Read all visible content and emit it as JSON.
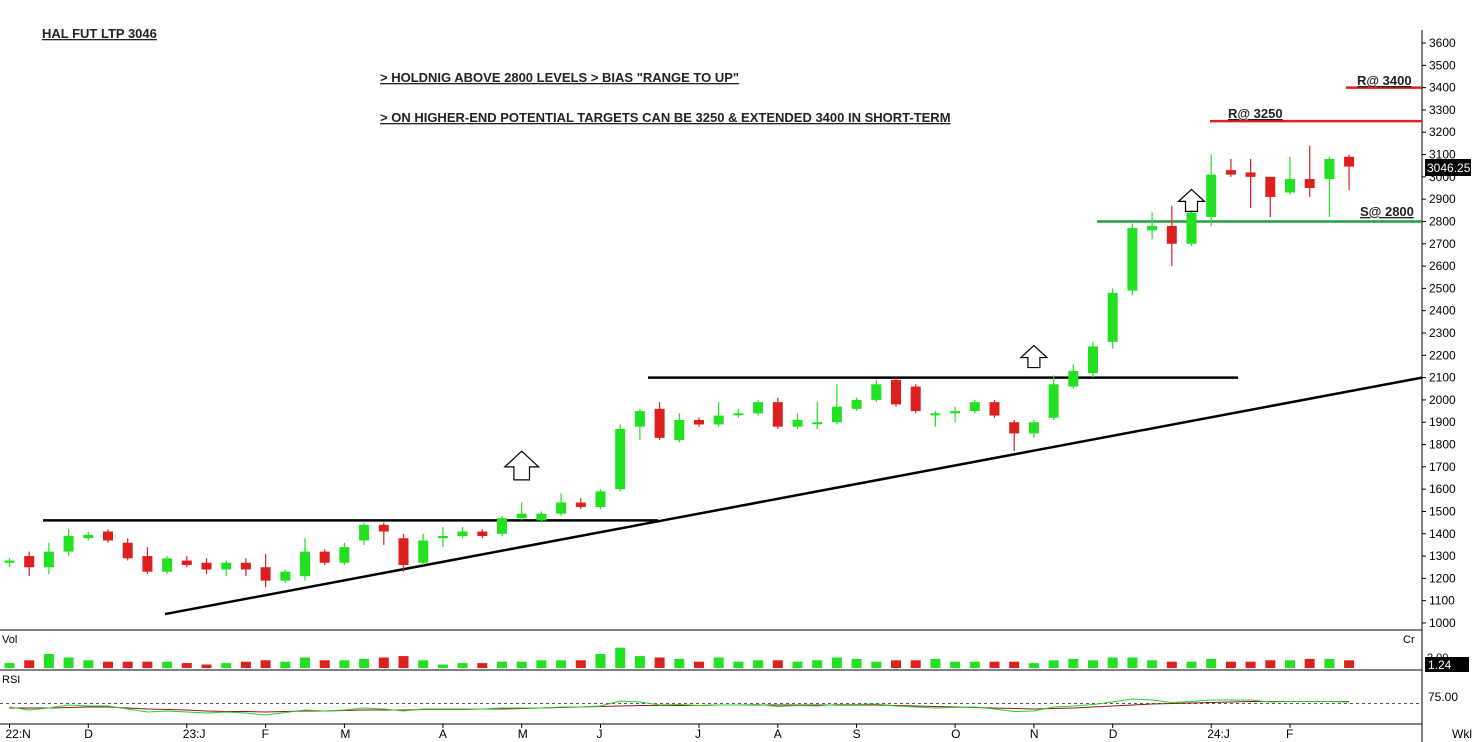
{
  "header": {
    "title": "HAL FUT LTP 3046",
    "note1": "> HOLDNIG ABOVE 2800 LEVELS > BIAS \"RANGE TO UP\"",
    "note2": "> ON HIGHER-END POTENTIAL TARGETS CAN BE 3250 & EXTENDED 3400 IN SHORT-TERM"
  },
  "labels": {
    "r3400": "R@ 3400",
    "r3250": "R@ 3250",
    "s2800": "S@ 2800",
    "last_price": "3046.25",
    "vol_panel": "Vol",
    "vol_unit": "Cr",
    "vol_tick": "2.00",
    "vol_last": "1.24",
    "rsi_panel": "RSI",
    "rsi_tick": "75.00",
    "timeframe": "Wkl"
  },
  "colors": {
    "up": "#22e022",
    "down": "#dd1f1f",
    "resistance": "#e02020",
    "support": "#20a040",
    "trendline": "#000000",
    "rsi_line": "#2ecc2e",
    "rsi_avg": "#8b1a1a"
  },
  "chart_data": {
    "type": "candlestick",
    "timeframe": "weekly",
    "ylim": [
      950,
      3650
    ],
    "y_ticks": [
      1000,
      1100,
      1200,
      1300,
      1400,
      1500,
      1600,
      1700,
      1800,
      1900,
      2000,
      2100,
      2200,
      2300,
      2400,
      2500,
      2600,
      2700,
      2800,
      2900,
      3000,
      3100,
      3200,
      3300,
      3400,
      3500,
      3600
    ],
    "x_ticks": [
      {
        "label": "22:N",
        "bar": 0
      },
      {
        "label": "D",
        "bar": 4
      },
      {
        "label": "23:J",
        "bar": 9
      },
      {
        "label": "F",
        "bar": 13
      },
      {
        "label": "M",
        "bar": 17
      },
      {
        "label": "A",
        "bar": 22
      },
      {
        "label": "M",
        "bar": 26
      },
      {
        "label": "J",
        "bar": 30
      },
      {
        "label": "J",
        "bar": 35
      },
      {
        "label": "A",
        "bar": 39
      },
      {
        "label": "S",
        "bar": 43
      },
      {
        "label": "O",
        "bar": 48
      },
      {
        "label": "N",
        "bar": 52
      },
      {
        "label": "D",
        "bar": 56
      },
      {
        "label": "24:J",
        "bar": 61
      },
      {
        "label": "F",
        "bar": 65
      }
    ],
    "candles": [
      {
        "o": 1270,
        "h": 1290,
        "l": 1250,
        "c": 1280
      },
      {
        "o": 1300,
        "h": 1320,
        "l": 1210,
        "c": 1250
      },
      {
        "o": 1250,
        "h": 1360,
        "l": 1220,
        "c": 1320
      },
      {
        "o": 1320,
        "h": 1420,
        "l": 1300,
        "c": 1390
      },
      {
        "o": 1380,
        "h": 1410,
        "l": 1370,
        "c": 1395
      },
      {
        "o": 1410,
        "h": 1420,
        "l": 1360,
        "c": 1370
      },
      {
        "o": 1360,
        "h": 1380,
        "l": 1280,
        "c": 1290
      },
      {
        "o": 1300,
        "h": 1340,
        "l": 1220,
        "c": 1230
      },
      {
        "o": 1230,
        "h": 1300,
        "l": 1220,
        "c": 1290
      },
      {
        "o": 1280,
        "h": 1300,
        "l": 1250,
        "c": 1260
      },
      {
        "o": 1270,
        "h": 1290,
        "l": 1220,
        "c": 1240
      },
      {
        "o": 1240,
        "h": 1280,
        "l": 1210,
        "c": 1270
      },
      {
        "o": 1270,
        "h": 1290,
        "l": 1210,
        "c": 1240
      },
      {
        "o": 1250,
        "h": 1310,
        "l": 1160,
        "c": 1190
      },
      {
        "o": 1190,
        "h": 1240,
        "l": 1180,
        "c": 1230
      },
      {
        "o": 1210,
        "h": 1380,
        "l": 1190,
        "c": 1320
      },
      {
        "o": 1320,
        "h": 1330,
        "l": 1260,
        "c": 1270
      },
      {
        "o": 1270,
        "h": 1360,
        "l": 1260,
        "c": 1340
      },
      {
        "o": 1370,
        "h": 1450,
        "l": 1350,
        "c": 1440
      },
      {
        "o": 1440,
        "h": 1450,
        "l": 1350,
        "c": 1410
      },
      {
        "o": 1380,
        "h": 1400,
        "l": 1230,
        "c": 1260
      },
      {
        "o": 1270,
        "h": 1400,
        "l": 1260,
        "c": 1370
      },
      {
        "o": 1380,
        "h": 1430,
        "l": 1340,
        "c": 1390
      },
      {
        "o": 1390,
        "h": 1430,
        "l": 1380,
        "c": 1410
      },
      {
        "o": 1410,
        "h": 1420,
        "l": 1380,
        "c": 1390
      },
      {
        "o": 1400,
        "h": 1480,
        "l": 1390,
        "c": 1470
      },
      {
        "o": 1470,
        "h": 1540,
        "l": 1460,
        "c": 1490
      },
      {
        "o": 1460,
        "h": 1500,
        "l": 1450,
        "c": 1490
      },
      {
        "o": 1490,
        "h": 1580,
        "l": 1480,
        "c": 1540
      },
      {
        "o": 1540,
        "h": 1560,
        "l": 1510,
        "c": 1520
      },
      {
        "o": 1520,
        "h": 1600,
        "l": 1510,
        "c": 1590
      },
      {
        "o": 1600,
        "h": 1890,
        "l": 1590,
        "c": 1870
      },
      {
        "o": 1880,
        "h": 1960,
        "l": 1820,
        "c": 1950
      },
      {
        "o": 1960,
        "h": 1990,
        "l": 1820,
        "c": 1830
      },
      {
        "o": 1820,
        "h": 1940,
        "l": 1810,
        "c": 1910
      },
      {
        "o": 1910,
        "h": 1920,
        "l": 1880,
        "c": 1890
      },
      {
        "o": 1890,
        "h": 1990,
        "l": 1880,
        "c": 1930
      },
      {
        "o": 1940,
        "h": 1960,
        "l": 1920,
        "c": 1940
      },
      {
        "o": 1940,
        "h": 2000,
        "l": 1930,
        "c": 1990
      },
      {
        "o": 1990,
        "h": 2010,
        "l": 1870,
        "c": 1880
      },
      {
        "o": 1880,
        "h": 1940,
        "l": 1870,
        "c": 1910
      },
      {
        "o": 1900,
        "h": 1990,
        "l": 1870,
        "c": 1900
      },
      {
        "o": 1900,
        "h": 2070,
        "l": 1890,
        "c": 1970
      },
      {
        "o": 1960,
        "h": 2010,
        "l": 1950,
        "c": 2000
      },
      {
        "o": 2000,
        "h": 2090,
        "l": 1990,
        "c": 2070
      },
      {
        "o": 2090,
        "h": 2100,
        "l": 1970,
        "c": 1980
      },
      {
        "o": 2060,
        "h": 2070,
        "l": 1940,
        "c": 1950
      },
      {
        "o": 1940,
        "h": 1950,
        "l": 1880,
        "c": 1940
      },
      {
        "o": 1940,
        "h": 1970,
        "l": 1900,
        "c": 1950
      },
      {
        "o": 1950,
        "h": 2000,
        "l": 1940,
        "c": 1990
      },
      {
        "o": 1990,
        "h": 2000,
        "l": 1920,
        "c": 1930
      },
      {
        "o": 1900,
        "h": 1910,
        "l": 1770,
        "c": 1850
      },
      {
        "o": 1850,
        "h": 1910,
        "l": 1830,
        "c": 1900
      },
      {
        "o": 1920,
        "h": 2110,
        "l": 1910,
        "c": 2070
      },
      {
        "o": 2060,
        "h": 2160,
        "l": 2050,
        "c": 2130
      },
      {
        "o": 2120,
        "h": 2260,
        "l": 2100,
        "c": 2240
      },
      {
        "o": 2260,
        "h": 2500,
        "l": 2230,
        "c": 2480
      },
      {
        "o": 2490,
        "h": 2790,
        "l": 2470,
        "c": 2770
      },
      {
        "o": 2760,
        "h": 2840,
        "l": 2720,
        "c": 2780
      },
      {
        "o": 2780,
        "h": 2870,
        "l": 2600,
        "c": 2700
      },
      {
        "o": 2700,
        "h": 2870,
        "l": 2690,
        "c": 2840
      },
      {
        "o": 2820,
        "h": 3100,
        "l": 2780,
        "c": 3010
      },
      {
        "o": 3030,
        "h": 3080,
        "l": 3000,
        "c": 3010
      },
      {
        "o": 3020,
        "h": 3080,
        "l": 2860,
        "c": 3000
      },
      {
        "o": 3000,
        "h": 3000,
        "l": 2820,
        "c": 2910
      },
      {
        "o": 2930,
        "h": 3090,
        "l": 2920,
        "c": 2990
      },
      {
        "o": 2990,
        "h": 3140,
        "l": 2910,
        "c": 2950
      },
      {
        "o": 2990,
        "h": 3090,
        "l": 2820,
        "c": 3080
      },
      {
        "o": 3090,
        "h": 3100,
        "l": 2940,
        "c": 3046.25
      }
    ],
    "volume_bars": [
      0.35,
      0.55,
      1.0,
      0.75,
      0.55,
      0.45,
      0.45,
      0.45,
      0.45,
      0.35,
      0.25,
      0.35,
      0.45,
      0.55,
      0.45,
      0.75,
      0.55,
      0.55,
      0.65,
      0.75,
      0.85,
      0.55,
      0.25,
      0.35,
      0.35,
      0.45,
      0.45,
      0.55,
      0.55,
      0.55,
      1.0,
      1.45,
      0.85,
      0.75,
      0.65,
      0.45,
      0.75,
      0.45,
      0.55,
      0.55,
      0.45,
      0.55,
      0.75,
      0.65,
      0.45,
      0.55,
      0.55,
      0.65,
      0.45,
      0.45,
      0.45,
      0.45,
      0.35,
      0.55,
      0.65,
      0.55,
      0.75,
      0.75,
      0.55,
      0.45,
      0.45,
      0.65,
      0.45,
      0.45,
      0.55,
      0.55,
      0.65,
      0.65,
      0.55
    ],
    "rsi": {
      "ticks": [
        75.0
      ],
      "rsi": [
        66,
        60,
        64,
        70,
        68,
        68,
        62,
        56,
        58,
        56,
        54,
        56,
        54,
        50,
        55,
        60,
        58,
        60,
        64,
        62,
        58,
        62,
        62,
        62,
        62,
        64,
        64,
        64,
        66,
        66,
        68,
        78,
        76,
        70,
        71,
        69,
        70,
        70,
        71,
        67,
        69,
        68,
        71,
        71,
        72,
        68,
        66,
        64,
        65,
        66,
        62,
        57,
        58,
        66,
        68,
        71,
        76,
        82,
        80,
        75,
        77,
        80,
        80,
        80,
        76,
        77,
        77,
        77,
        76
      ],
      "avg": [
        64,
        64,
        64,
        65,
        66,
        66,
        64,
        62,
        61,
        60,
        58,
        57,
        57,
        56,
        57,
        58,
        58,
        59,
        60,
        60,
        60,
        61,
        61,
        61,
        62,
        62,
        63,
        64,
        65,
        66,
        67,
        68,
        69,
        69,
        69,
        69,
        70,
        70,
        70,
        70,
        70,
        70,
        70,
        70,
        70,
        69,
        68,
        67,
        66,
        65,
        64,
        63,
        62,
        63,
        64,
        66,
        68,
        70,
        72,
        73,
        74,
        75,
        76,
        77,
        77,
        77,
        77,
        77,
        77
      ]
    },
    "levels": [
      {
        "name": "R@ 3400",
        "value": 3400,
        "type": "resistance"
      },
      {
        "name": "R@ 3250",
        "value": 3250,
        "type": "resistance"
      },
      {
        "name": "S@ 2800",
        "value": 2800,
        "type": "support"
      },
      {
        "value": 1460,
        "type": "horizontal"
      },
      {
        "value": 2100,
        "type": "horizontal"
      }
    ],
    "trendline": {
      "start": {
        "bar": 8,
        "price": 1040
      },
      "end": {
        "bar": 72,
        "price": 2100
      }
    },
    "breakout_arrows": [
      {
        "bar": 26,
        "price": 1700
      },
      {
        "bar": 52,
        "price": 2190
      },
      {
        "bar": 60,
        "price": 2890
      }
    ]
  }
}
